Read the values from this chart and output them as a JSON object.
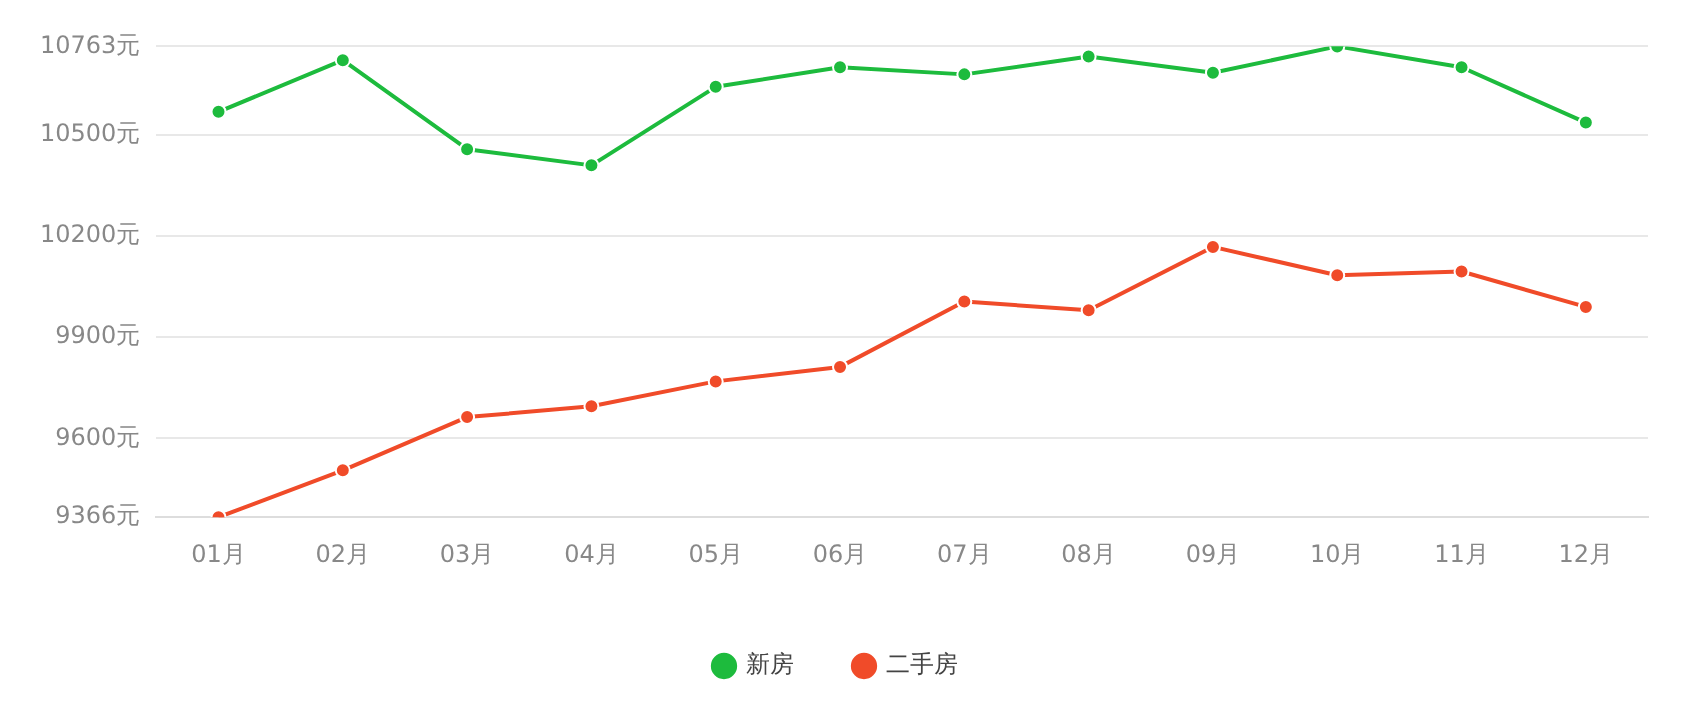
{
  "chart_data": {
    "type": "line",
    "categories": [
      "01月",
      "02月",
      "03月",
      "04月",
      "05月",
      "06月",
      "07月",
      "08月",
      "09月",
      "10月",
      "11月",
      "12月"
    ],
    "series": [
      {
        "name": "新房",
        "color": "#1dbb3d",
        "values": [
          10569,
          10722,
          10458,
          10410,
          10643,
          10701,
          10680,
          10733,
          10685,
          10763,
          10701,
          10537
        ]
      },
      {
        "name": "二手房",
        "color": "#f04b29",
        "values": [
          9366,
          9505,
          9663,
          9695,
          9769,
          9812,
          10006,
          9980,
          10168,
          10084,
          10095,
          9990
        ]
      }
    ],
    "ylim": [
      9366,
      10763
    ],
    "yticks": [
      {
        "value": 9366,
        "label": "9366元"
      },
      {
        "value": 9600,
        "label": "9600元"
      },
      {
        "value": 9900,
        "label": "9900元"
      },
      {
        "value": 10200,
        "label": "10200元"
      },
      {
        "value": 10500,
        "label": "10500元"
      },
      {
        "value": 10763,
        "label": "10763元"
      }
    ],
    "grid": "y",
    "legend": "bottom",
    "marker": "circle",
    "line_style": "solid"
  }
}
